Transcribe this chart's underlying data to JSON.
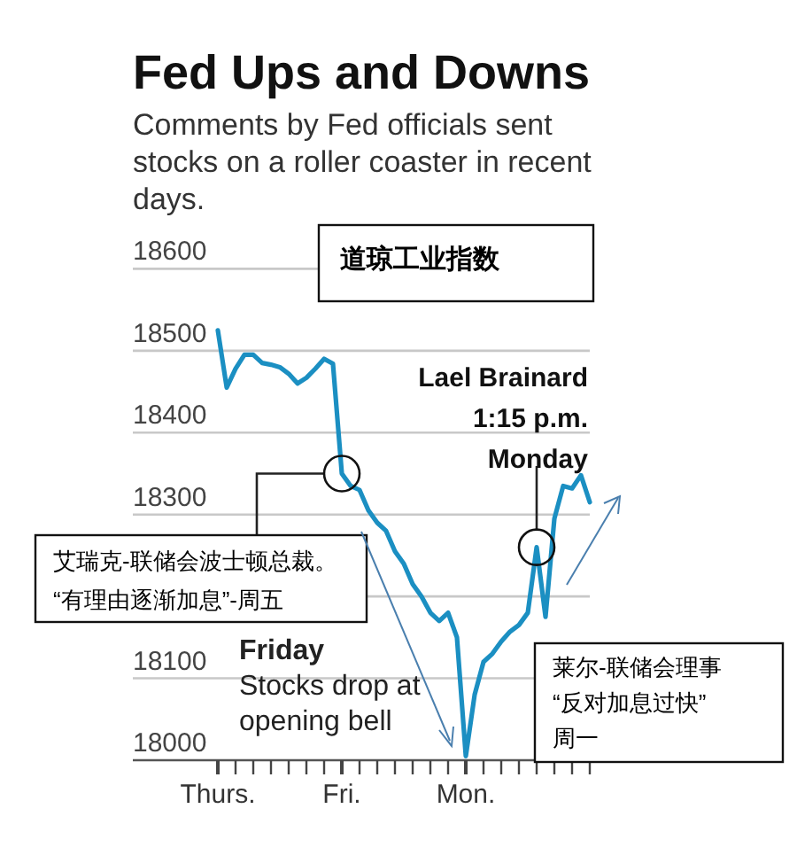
{
  "chart_data": {
    "type": "line",
    "title": "Fed Ups and Downs",
    "subtitle": "Comments by Fed officials sent stocks on a roller coaster in recent days.",
    "categories": [
      "Thurs.",
      null,
      null,
      null,
      null,
      null,
      null,
      null,
      null,
      null,
      null,
      null,
      null,
      null,
      "Fri.",
      null,
      null,
      null,
      null,
      null,
      null,
      null,
      null,
      null,
      null,
      null,
      null,
      null,
      "Mon.",
      null,
      null,
      null,
      null,
      null,
      null,
      null,
      null,
      null,
      null,
      null,
      null,
      null,
      null
    ],
    "series": [
      {
        "color": "#1b8fc2",
        "values": [
          18525,
          18455,
          18478,
          18495,
          18495,
          18485,
          18483,
          18480,
          18472,
          18460,
          18467,
          18478,
          18490,
          18484,
          18350,
          18335,
          18330,
          18305,
          18290,
          18280,
          18255,
          18240,
          18215,
          18200,
          18180,
          18170,
          18180,
          18150,
          18005,
          18080,
          18120,
          18130,
          18145,
          18157,
          18165,
          18180,
          18260,
          18175,
          18295,
          18335,
          18332,
          18348,
          18315
        ]
      }
    ],
    "ylim": [
      18000,
      18600
    ],
    "yticks": [
      18000,
      18100,
      {
        "value": 18200,
        "label": null
      },
      18300,
      18400,
      18500,
      18600
    ],
    "grid": "y",
    "marker": "none",
    "line_style": "solid",
    "annotations": [
      "道琼工业指数",
      "Lael Brainard\n1:15 p.m.\nMonday",
      "艾瑞克-联储会波士顿总裁。\n“有理由逐渐加息”-周五",
      "Friday\nStocks drop at\nopening bell",
      "莱尔-联储会理事\n“反对加息过快”\n周一"
    ]
  }
}
